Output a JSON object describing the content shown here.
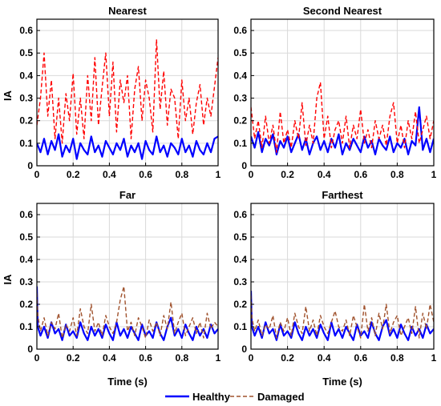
{
  "chart_data": [
    {
      "type": "line",
      "title": "Nearest",
      "ylabel": "IA",
      "xlabel": "",
      "xlim": [
        0,
        1
      ],
      "ylim": [
        0,
        0.65
      ],
      "xticks": [
        0,
        0.2,
        0.4,
        0.6,
        0.8,
        1
      ],
      "xtick_labels": [
        "0",
        "0.2",
        "0.4",
        "0.6",
        "0.8",
        "1"
      ],
      "yticks": [
        0,
        0.1,
        0.2,
        0.3,
        0.4,
        0.5,
        0.6
      ],
      "ytick_labels": [
        "0",
        "0.1",
        "0.2",
        "0.3",
        "0.4",
        "0.5",
        "0.6"
      ],
      "grid": true,
      "series": [
        {
          "name": "Healthy",
          "color": "#0000ff",
          "style": "solid",
          "x": [
            0,
            0.02,
            0.04,
            0.06,
            0.08,
            0.1,
            0.12,
            0.14,
            0.16,
            0.18,
            0.2,
            0.22,
            0.24,
            0.26,
            0.28,
            0.3,
            0.32,
            0.34,
            0.36,
            0.38,
            0.4,
            0.42,
            0.44,
            0.46,
            0.48,
            0.5,
            0.52,
            0.54,
            0.56,
            0.58,
            0.6,
            0.62,
            0.64,
            0.66,
            0.68,
            0.7,
            0.72,
            0.74,
            0.76,
            0.78,
            0.8,
            0.82,
            0.84,
            0.86,
            0.88,
            0.9,
            0.92,
            0.94,
            0.96,
            0.98,
            1
          ],
          "y": [
            0.1,
            0.06,
            0.12,
            0.05,
            0.11,
            0.07,
            0.14,
            0.04,
            0.09,
            0.06,
            0.12,
            0.03,
            0.1,
            0.07,
            0.05,
            0.13,
            0.06,
            0.09,
            0.04,
            0.11,
            0.08,
            0.05,
            0.1,
            0.07,
            0.12,
            0.04,
            0.09,
            0.06,
            0.1,
            0.03,
            0.11,
            0.07,
            0.05,
            0.13,
            0.06,
            0.09,
            0.04,
            0.1,
            0.08,
            0.05,
            0.12,
            0.06,
            0.09,
            0.04,
            0.11,
            0.07,
            0.05,
            0.1,
            0.06,
            0.12,
            0.13
          ]
        },
        {
          "name": "Damaged",
          "color": "#ff0000",
          "style": "dashed",
          "x": [
            0,
            0.02,
            0.04,
            0.06,
            0.08,
            0.1,
            0.12,
            0.14,
            0.16,
            0.18,
            0.2,
            0.22,
            0.24,
            0.26,
            0.28,
            0.3,
            0.32,
            0.34,
            0.36,
            0.38,
            0.4,
            0.42,
            0.44,
            0.46,
            0.48,
            0.5,
            0.52,
            0.54,
            0.56,
            0.58,
            0.6,
            0.62,
            0.64,
            0.66,
            0.68,
            0.7,
            0.72,
            0.74,
            0.76,
            0.78,
            0.8,
            0.82,
            0.84,
            0.86,
            0.88,
            0.9,
            0.92,
            0.94,
            0.96,
            0.98,
            1
          ],
          "y": [
            0.18,
            0.3,
            0.5,
            0.22,
            0.38,
            0.12,
            0.3,
            0.1,
            0.32,
            0.2,
            0.41,
            0.14,
            0.3,
            0.12,
            0.4,
            0.2,
            0.48,
            0.18,
            0.35,
            0.5,
            0.22,
            0.46,
            0.15,
            0.38,
            0.28,
            0.4,
            0.12,
            0.34,
            0.44,
            0.2,
            0.38,
            0.3,
            0.15,
            0.56,
            0.25,
            0.42,
            0.18,
            0.34,
            0.3,
            0.12,
            0.38,
            0.2,
            0.3,
            0.14,
            0.28,
            0.36,
            0.18,
            0.3,
            0.22,
            0.35,
            0.48
          ]
        }
      ]
    },
    {
      "type": "line",
      "title": "Second Nearest",
      "ylabel": "",
      "xlabel": "",
      "xlim": [
        0,
        1
      ],
      "ylim": [
        0,
        0.65
      ],
      "xticks": [
        0,
        0.2,
        0.4,
        0.6,
        0.8,
        1
      ],
      "xtick_labels": [
        "0",
        "0.2",
        "0.4",
        "0.6",
        "0.8",
        "1"
      ],
      "yticks": [
        0,
        0.1,
        0.2,
        0.3,
        0.4,
        0.5,
        0.6
      ],
      "ytick_labels": [
        "0",
        "0.1",
        "0.2",
        "0.3",
        "0.4",
        "0.5",
        "0.6"
      ],
      "grid": true,
      "series": [
        {
          "name": "Healthy",
          "color": "#0000ff",
          "style": "solid",
          "x": [
            0,
            0.02,
            0.04,
            0.06,
            0.08,
            0.1,
            0.12,
            0.14,
            0.16,
            0.18,
            0.2,
            0.22,
            0.24,
            0.26,
            0.28,
            0.3,
            0.32,
            0.34,
            0.36,
            0.38,
            0.4,
            0.42,
            0.44,
            0.46,
            0.48,
            0.5,
            0.52,
            0.54,
            0.56,
            0.58,
            0.6,
            0.62,
            0.64,
            0.66,
            0.68,
            0.7,
            0.72,
            0.74,
            0.76,
            0.78,
            0.8,
            0.82,
            0.84,
            0.86,
            0.88,
            0.9,
            0.92,
            0.94,
            0.96,
            0.98,
            1
          ],
          "y": [
            0.13,
            0.08,
            0.15,
            0.06,
            0.12,
            0.09,
            0.14,
            0.05,
            0.11,
            0.08,
            0.13,
            0.06,
            0.1,
            0.14,
            0.07,
            0.12,
            0.05,
            0.1,
            0.13,
            0.07,
            0.11,
            0.06,
            0.12,
            0.08,
            0.14,
            0.05,
            0.1,
            0.07,
            0.12,
            0.09,
            0.06,
            0.13,
            0.08,
            0.11,
            0.05,
            0.12,
            0.09,
            0.07,
            0.13,
            0.06,
            0.1,
            0.08,
            0.12,
            0.05,
            0.11,
            0.09,
            0.26,
            0.07,
            0.12,
            0.06,
            0.12
          ]
        },
        {
          "name": "Damaged",
          "color": "#ff0000",
          "style": "dashed",
          "x": [
            0,
            0.02,
            0.04,
            0.06,
            0.08,
            0.1,
            0.12,
            0.14,
            0.16,
            0.18,
            0.2,
            0.22,
            0.24,
            0.26,
            0.28,
            0.3,
            0.32,
            0.34,
            0.36,
            0.38,
            0.4,
            0.42,
            0.44,
            0.46,
            0.48,
            0.5,
            0.52,
            0.54,
            0.56,
            0.58,
            0.6,
            0.62,
            0.64,
            0.66,
            0.68,
            0.7,
            0.72,
            0.74,
            0.76,
            0.78,
            0.8,
            0.82,
            0.84,
            0.86,
            0.88,
            0.9,
            0.92,
            0.94,
            0.96,
            0.98,
            1
          ],
          "y": [
            0.26,
            0.12,
            0.2,
            0.08,
            0.22,
            0.1,
            0.18,
            0.06,
            0.24,
            0.1,
            0.16,
            0.08,
            0.2,
            0.12,
            0.28,
            0.09,
            0.18,
            0.1,
            0.3,
            0.37,
            0.12,
            0.22,
            0.08,
            0.16,
            0.2,
            0.1,
            0.22,
            0.08,
            0.18,
            0.12,
            0.25,
            0.1,
            0.16,
            0.08,
            0.2,
            0.12,
            0.18,
            0.09,
            0.22,
            0.28,
            0.1,
            0.18,
            0.08,
            0.2,
            0.12,
            0.24,
            0.1,
            0.16,
            0.22,
            0.12,
            0.2
          ]
        }
      ]
    },
    {
      "type": "line",
      "title": "Far",
      "ylabel": "IA",
      "xlabel": "Time (s)",
      "xlim": [
        0,
        1
      ],
      "ylim": [
        0,
        0.65
      ],
      "xticks": [
        0,
        0.2,
        0.4,
        0.6,
        0.8,
        1
      ],
      "xtick_labels": [
        "0",
        "0.2",
        "0.4",
        "0.6",
        "0.8",
        "1"
      ],
      "yticks": [
        0,
        0.1,
        0.2,
        0.3,
        0.4,
        0.5,
        0.6
      ],
      "ytick_labels": [
        "0",
        "0.1",
        "0.2",
        "0.3",
        "0.4",
        "0.5",
        "0.6"
      ],
      "grid": true,
      "series": [
        {
          "name": "Healthy",
          "color": "#0000ff",
          "style": "solid",
          "x": [
            0,
            0.005,
            0.02,
            0.04,
            0.06,
            0.08,
            0.1,
            0.12,
            0.14,
            0.16,
            0.18,
            0.2,
            0.22,
            0.24,
            0.26,
            0.28,
            0.3,
            0.32,
            0.34,
            0.36,
            0.38,
            0.4,
            0.42,
            0.44,
            0.46,
            0.48,
            0.5,
            0.52,
            0.54,
            0.56,
            0.58,
            0.6,
            0.62,
            0.64,
            0.66,
            0.68,
            0.7,
            0.72,
            0.74,
            0.76,
            0.78,
            0.8,
            0.82,
            0.84,
            0.86,
            0.88,
            0.9,
            0.92,
            0.94,
            0.96,
            0.98,
            1
          ],
          "y": [
            0.28,
            0.1,
            0.06,
            0.1,
            0.05,
            0.12,
            0.07,
            0.09,
            0.04,
            0.11,
            0.06,
            0.08,
            0.05,
            0.12,
            0.07,
            0.04,
            0.1,
            0.06,
            0.09,
            0.05,
            0.11,
            0.07,
            0.04,
            0.12,
            0.06,
            0.09,
            0.05,
            0.1,
            0.07,
            0.04,
            0.11,
            0.06,
            0.08,
            0.05,
            0.12,
            0.07,
            0.04,
            0.1,
            0.14,
            0.06,
            0.09,
            0.05,
            0.11,
            0.07,
            0.04,
            0.1,
            0.06,
            0.09,
            0.05,
            0.11,
            0.07,
            0.09
          ]
        },
        {
          "name": "Damaged",
          "color": "#a0522d",
          "style": "dashed",
          "x": [
            0,
            0.005,
            0.02,
            0.04,
            0.06,
            0.08,
            0.1,
            0.12,
            0.14,
            0.16,
            0.18,
            0.2,
            0.22,
            0.24,
            0.26,
            0.28,
            0.3,
            0.32,
            0.34,
            0.36,
            0.38,
            0.4,
            0.42,
            0.44,
            0.46,
            0.48,
            0.5,
            0.52,
            0.54,
            0.56,
            0.58,
            0.6,
            0.62,
            0.64,
            0.66,
            0.68,
            0.7,
            0.72,
            0.74,
            0.76,
            0.78,
            0.8,
            0.82,
            0.84,
            0.86,
            0.88,
            0.9,
            0.92,
            0.94,
            0.96,
            0.98,
            1
          ],
          "y": [
            0.25,
            0.15,
            0.08,
            0.14,
            0.06,
            0.12,
            0.09,
            0.16,
            0.05,
            0.11,
            0.08,
            0.14,
            0.06,
            0.18,
            0.1,
            0.07,
            0.2,
            0.08,
            0.12,
            0.06,
            0.15,
            0.1,
            0.07,
            0.12,
            0.22,
            0.28,
            0.08,
            0.12,
            0.06,
            0.14,
            0.1,
            0.05,
            0.13,
            0.08,
            0.12,
            0.06,
            0.15,
            0.09,
            0.21,
            0.07,
            0.12,
            0.16,
            0.06,
            0.1,
            0.14,
            0.07,
            0.12,
            0.05,
            0.16,
            0.09,
            0.12,
            0.1
          ]
        }
      ]
    },
    {
      "type": "line",
      "title": "Farthest",
      "ylabel": "",
      "xlabel": "Time (s)",
      "xlim": [
        0,
        1
      ],
      "ylim": [
        0,
        0.65
      ],
      "xticks": [
        0,
        0.2,
        0.4,
        0.6,
        0.8,
        1
      ],
      "xtick_labels": [
        "0",
        "0.2",
        "0.4",
        "0.6",
        "0.8",
        "1"
      ],
      "yticks": [
        0,
        0.1,
        0.2,
        0.3,
        0.4,
        0.5,
        0.6
      ],
      "ytick_labels": [
        "0",
        "0.1",
        "0.2",
        "0.3",
        "0.4",
        "0.5",
        "0.6"
      ],
      "grid": true,
      "series": [
        {
          "name": "Healthy",
          "color": "#0000ff",
          "style": "solid",
          "x": [
            0,
            0.005,
            0.02,
            0.04,
            0.06,
            0.08,
            0.1,
            0.12,
            0.14,
            0.16,
            0.18,
            0.2,
            0.22,
            0.24,
            0.26,
            0.28,
            0.3,
            0.32,
            0.34,
            0.36,
            0.38,
            0.4,
            0.42,
            0.44,
            0.46,
            0.48,
            0.5,
            0.52,
            0.54,
            0.56,
            0.58,
            0.6,
            0.62,
            0.64,
            0.66,
            0.68,
            0.7,
            0.72,
            0.74,
            0.76,
            0.78,
            0.8,
            0.82,
            0.84,
            0.86,
            0.88,
            0.9,
            0.92,
            0.94,
            0.96,
            0.98,
            1
          ],
          "y": [
            0.26,
            0.1,
            0.06,
            0.1,
            0.05,
            0.12,
            0.07,
            0.09,
            0.04,
            0.11,
            0.06,
            0.08,
            0.05,
            0.12,
            0.07,
            0.04,
            0.1,
            0.06,
            0.09,
            0.05,
            0.11,
            0.07,
            0.04,
            0.12,
            0.06,
            0.09,
            0.05,
            0.1,
            0.07,
            0.04,
            0.11,
            0.06,
            0.08,
            0.05,
            0.12,
            0.07,
            0.04,
            0.1,
            0.13,
            0.06,
            0.09,
            0.05,
            0.11,
            0.07,
            0.04,
            0.1,
            0.06,
            0.09,
            0.05,
            0.11,
            0.07,
            0.09
          ]
        },
        {
          "name": "Damaged",
          "color": "#a0522d",
          "style": "dashed",
          "x": [
            0,
            0.005,
            0.02,
            0.04,
            0.06,
            0.08,
            0.1,
            0.12,
            0.14,
            0.16,
            0.18,
            0.2,
            0.22,
            0.24,
            0.26,
            0.28,
            0.3,
            0.32,
            0.34,
            0.36,
            0.38,
            0.4,
            0.42,
            0.44,
            0.46,
            0.48,
            0.5,
            0.52,
            0.54,
            0.56,
            0.58,
            0.6,
            0.62,
            0.64,
            0.66,
            0.68,
            0.7,
            0.72,
            0.74,
            0.76,
            0.78,
            0.8,
            0.82,
            0.84,
            0.86,
            0.88,
            0.9,
            0.92,
            0.94,
            0.96,
            0.98,
            1
          ],
          "y": [
            0.24,
            0.14,
            0.08,
            0.13,
            0.06,
            0.11,
            0.09,
            0.15,
            0.05,
            0.12,
            0.08,
            0.14,
            0.06,
            0.16,
            0.1,
            0.07,
            0.19,
            0.08,
            0.13,
            0.06,
            0.15,
            0.1,
            0.07,
            0.12,
            0.17,
            0.1,
            0.08,
            0.13,
            0.06,
            0.15,
            0.1,
            0.05,
            0.2,
            0.08,
            0.14,
            0.06,
            0.16,
            0.09,
            0.2,
            0.07,
            0.12,
            0.15,
            0.06,
            0.1,
            0.14,
            0.07,
            0.19,
            0.05,
            0.16,
            0.09,
            0.2,
            0.12
          ]
        }
      ]
    }
  ],
  "legend": {
    "placement": "bottom-center",
    "items": [
      {
        "label": "Healthy",
        "color": "#0000ff",
        "style": "solid"
      },
      {
        "label": "Damaged",
        "color": "#a0522d",
        "style": "dashed"
      }
    ]
  }
}
